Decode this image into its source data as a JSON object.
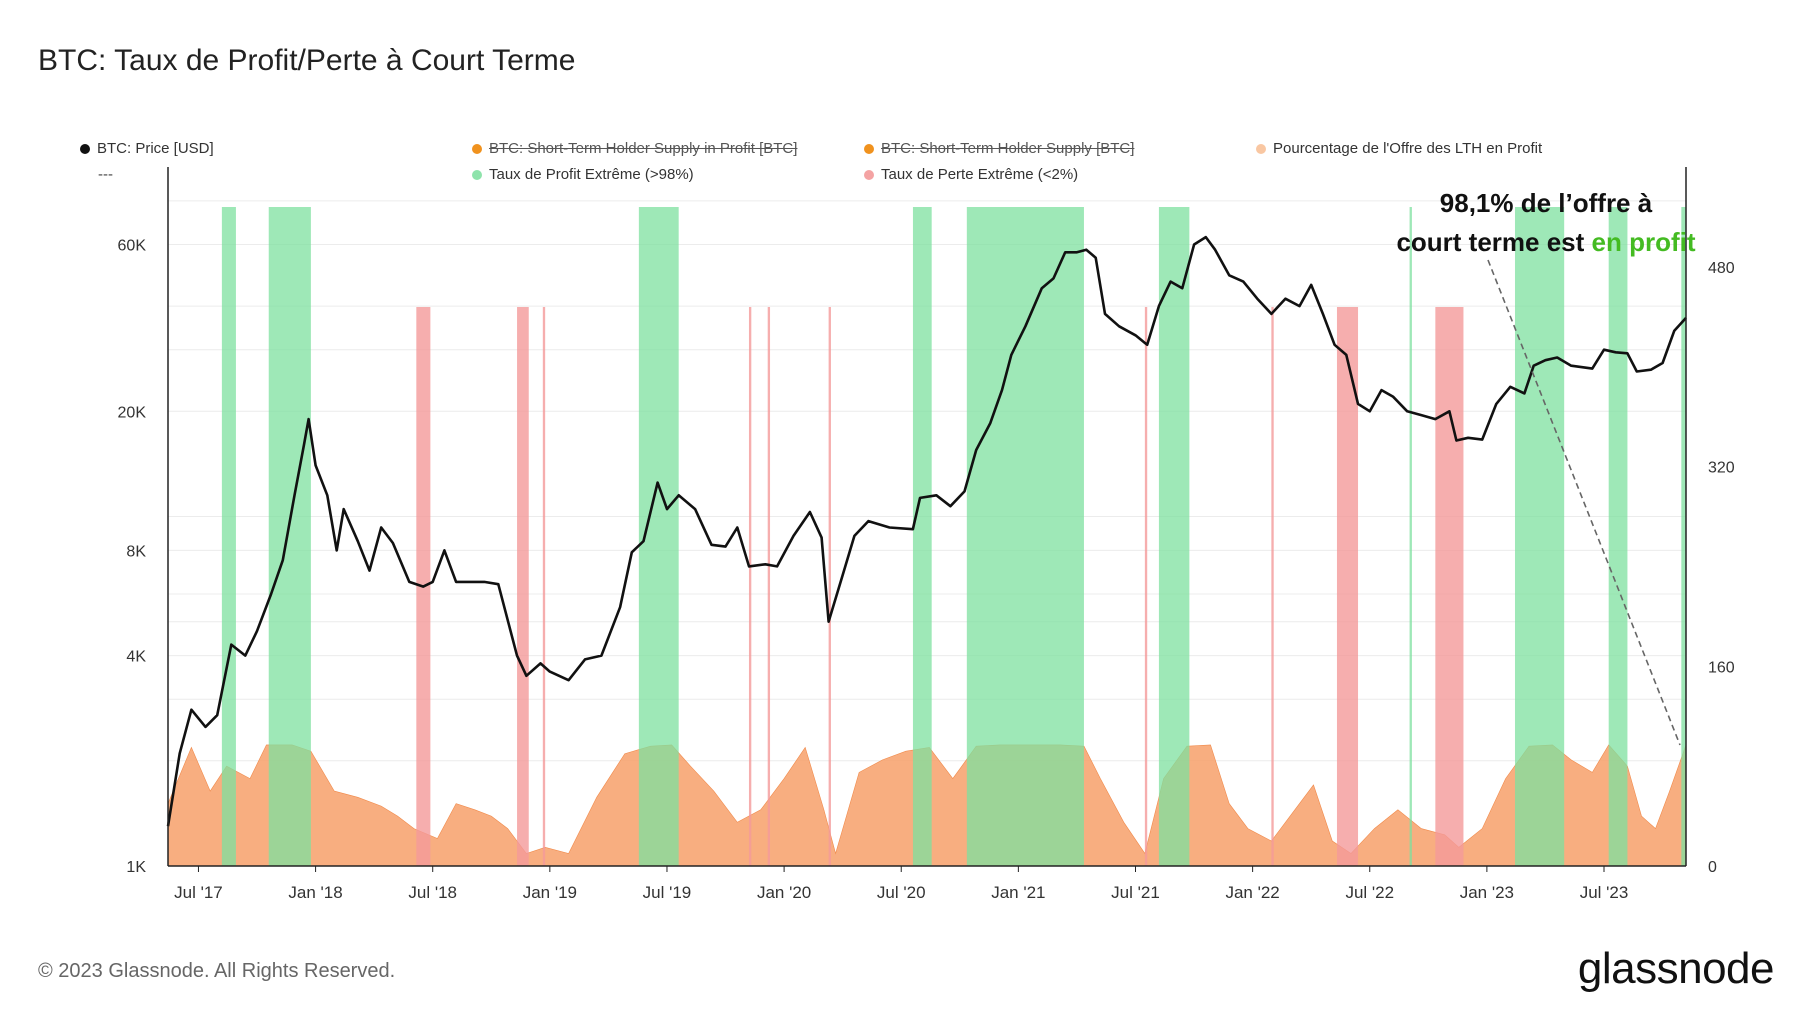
{
  "page": {
    "title": "BTC: Taux de Profit/Perte à Court Terme"
  },
  "legend": {
    "items": [
      {
        "label": "BTC: Price [USD]",
        "color": "#111111",
        "struck": false
      },
      {
        "label": "BTC: Short-Term Holder Supply in Profit [BTC]",
        "color": "#f0921e",
        "struck": true
      },
      {
        "label": "BTC: Short-Term Holder Supply [BTC]",
        "color": "#f0921e",
        "struck": true
      },
      {
        "label": "Pourcentage de l'Offre des LTH en Profit",
        "color": "#f9c7a2",
        "struck": false
      },
      {
        "label": "Taux de Profit Extrême (>98%)",
        "color": "#8ee3ab",
        "struck": false
      },
      {
        "label": "Taux de Perte Extrême (<2%)",
        "color": "#f4a3a3",
        "struck": false
      }
    ],
    "dashes": "---"
  },
  "annotation": {
    "line1": "98,1% de l’offre à",
    "line2_prefix": "court terme est ",
    "line2_highlight": "en profit",
    "highlight_color": "#44bb22"
  },
  "footer": {
    "copyright": "© 2023 Glassnode. All Rights Reserved.",
    "brand": "glassnode"
  },
  "chart_data": {
    "type": "line",
    "title": "BTC: Taux de Profit/Perte à Court Terme",
    "x_ticks": [
      "Jul '17",
      "Jan '18",
      "Jul '18",
      "Jan '19",
      "Jul '19",
      "Jan '20",
      "Jul '20",
      "Jan '21",
      "Jul '21",
      "Jan '22",
      "Jul '22",
      "Jan '23",
      "Jul '23"
    ],
    "left_axis": {
      "scale": "log",
      "ticks": [
        "1K",
        "4K",
        "8K",
        "20K",
        "60K"
      ],
      "tick_values": [
        1000,
        4000,
        8000,
        20000,
        60000
      ],
      "range": [
        1000,
        100000
      ]
    },
    "right_axis": {
      "scale": "linear",
      "ticks": [
        "0",
        "160",
        "320",
        "480"
      ],
      "tick_values": [
        0,
        160,
        320,
        480
      ],
      "range": [
        0,
        560
      ]
    },
    "x_range": [
      2017.37,
      2023.85
    ],
    "price_series": {
      "name": "BTC: Price [USD]",
      "color": "#111111",
      "points": [
        [
          2017.37,
          1300
        ],
        [
          2017.42,
          2100
        ],
        [
          2017.47,
          2800
        ],
        [
          2017.53,
          2500
        ],
        [
          2017.58,
          2700
        ],
        [
          2017.64,
          4300
        ],
        [
          2017.7,
          4000
        ],
        [
          2017.75,
          4700
        ],
        [
          2017.81,
          6000
        ],
        [
          2017.86,
          7500
        ],
        [
          2017.91,
          11500
        ],
        [
          2017.95,
          16000
        ],
        [
          2017.97,
          19000
        ],
        [
          2018.0,
          14000
        ],
        [
          2018.05,
          11500
        ],
        [
          2018.09,
          8000
        ],
        [
          2018.12,
          10500
        ],
        [
          2018.18,
          8500
        ],
        [
          2018.23,
          7000
        ],
        [
          2018.28,
          9300
        ],
        [
          2018.33,
          8400
        ],
        [
          2018.4,
          6500
        ],
        [
          2018.46,
          6300
        ],
        [
          2018.5,
          6500
        ],
        [
          2018.55,
          8000
        ],
        [
          2018.6,
          6500
        ],
        [
          2018.65,
          6500
        ],
        [
          2018.72,
          6500
        ],
        [
          2018.78,
          6400
        ],
        [
          2018.86,
          4000
        ],
        [
          2018.9,
          3500
        ],
        [
          2018.96,
          3800
        ],
        [
          2019.0,
          3600
        ],
        [
          2019.08,
          3400
        ],
        [
          2019.15,
          3900
        ],
        [
          2019.22,
          4000
        ],
        [
          2019.3,
          5500
        ],
        [
          2019.35,
          7900
        ],
        [
          2019.4,
          8500
        ],
        [
          2019.46,
          12500
        ],
        [
          2019.5,
          10500
        ],
        [
          2019.55,
          11500
        ],
        [
          2019.62,
          10500
        ],
        [
          2019.69,
          8300
        ],
        [
          2019.75,
          8200
        ],
        [
          2019.8,
          9300
        ],
        [
          2019.85,
          7200
        ],
        [
          2019.92,
          7300
        ],
        [
          2019.97,
          7200
        ],
        [
          2020.04,
          8800
        ],
        [
          2020.11,
          10300
        ],
        [
          2020.16,
          8700
        ],
        [
          2020.19,
          5000
        ],
        [
          2020.25,
          6800
        ],
        [
          2020.3,
          8800
        ],
        [
          2020.36,
          9700
        ],
        [
          2020.45,
          9300
        ],
        [
          2020.55,
          9200
        ],
        [
          2020.58,
          11300
        ],
        [
          2020.65,
          11500
        ],
        [
          2020.71,
          10700
        ],
        [
          2020.77,
          11800
        ],
        [
          2020.82,
          15500
        ],
        [
          2020.88,
          18500
        ],
        [
          2020.93,
          23000
        ],
        [
          2020.97,
          29000
        ],
        [
          2021.03,
          35000
        ],
        [
          2021.1,
          45000
        ],
        [
          2021.15,
          48000
        ],
        [
          2021.2,
          57000
        ],
        [
          2021.25,
          57000
        ],
        [
          2021.29,
          58000
        ],
        [
          2021.33,
          55000
        ],
        [
          2021.37,
          38000
        ],
        [
          2021.43,
          35000
        ],
        [
          2021.5,
          33000
        ],
        [
          2021.55,
          31000
        ],
        [
          2021.6,
          40000
        ],
        [
          2021.65,
          47000
        ],
        [
          2021.7,
          45000
        ],
        [
          2021.75,
          60000
        ],
        [
          2021.8,
          63000
        ],
        [
          2021.84,
          58000
        ],
        [
          2021.9,
          49000
        ],
        [
          2021.96,
          47000
        ],
        [
          2022.02,
          42000
        ],
        [
          2022.08,
          38000
        ],
        [
          2022.14,
          42000
        ],
        [
          2022.2,
          40000
        ],
        [
          2022.25,
          46000
        ],
        [
          2022.3,
          38000
        ],
        [
          2022.35,
          31000
        ],
        [
          2022.4,
          29000
        ],
        [
          2022.45,
          21000
        ],
        [
          2022.5,
          20000
        ],
        [
          2022.55,
          23000
        ],
        [
          2022.6,
          22000
        ],
        [
          2022.66,
          20000
        ],
        [
          2022.72,
          19500
        ],
        [
          2022.78,
          19000
        ],
        [
          2022.84,
          20000
        ],
        [
          2022.87,
          16500
        ],
        [
          2022.92,
          16800
        ],
        [
          2022.98,
          16600
        ],
        [
          2023.04,
          21000
        ],
        [
          2023.1,
          23500
        ],
        [
          2023.16,
          22500
        ],
        [
          2023.2,
          27000
        ],
        [
          2023.25,
          28000
        ],
        [
          2023.3,
          28500
        ],
        [
          2023.36,
          27000
        ],
        [
          2023.45,
          26500
        ],
        [
          2023.5,
          30000
        ],
        [
          2023.55,
          29500
        ],
        [
          2023.6,
          29300
        ],
        [
          2023.64,
          26000
        ],
        [
          2023.7,
          26300
        ],
        [
          2023.75,
          27500
        ],
        [
          2023.8,
          34000
        ],
        [
          2023.85,
          37000
        ]
      ]
    },
    "lth_profit_series": {
      "name": "Pourcentage de l'Offre des LTH en Profit",
      "color": "#f7a06a",
      "points": [
        [
          2017.37,
          50
        ],
        [
          2017.47,
          95
        ],
        [
          2017.55,
          60
        ],
        [
          2017.62,
          80
        ],
        [
          2017.72,
          70
        ],
        [
          2017.79,
          97
        ],
        [
          2017.9,
          97
        ],
        [
          2017.98,
          92
        ],
        [
          2018.08,
          60
        ],
        [
          2018.18,
          55
        ],
        [
          2018.28,
          48
        ],
        [
          2018.35,
          40
        ],
        [
          2018.42,
          30
        ],
        [
          2018.52,
          22
        ],
        [
          2018.6,
          50
        ],
        [
          2018.68,
          45
        ],
        [
          2018.75,
          40
        ],
        [
          2018.82,
          30
        ],
        [
          2018.9,
          10
        ],
        [
          2018.98,
          15
        ],
        [
          2019.08,
          10
        ],
        [
          2019.2,
          55
        ],
        [
          2019.32,
          90
        ],
        [
          2019.43,
          96
        ],
        [
          2019.52,
          97
        ],
        [
          2019.6,
          80
        ],
        [
          2019.7,
          60
        ],
        [
          2019.8,
          35
        ],
        [
          2019.9,
          45
        ],
        [
          2020.0,
          70
        ],
        [
          2020.09,
          95
        ],
        [
          2020.17,
          45
        ],
        [
          2020.22,
          10
        ],
        [
          2020.32,
          75
        ],
        [
          2020.42,
          85
        ],
        [
          2020.52,
          92
        ],
        [
          2020.62,
          95
        ],
        [
          2020.72,
          70
        ],
        [
          2020.82,
          96
        ],
        [
          2020.92,
          97
        ],
        [
          2021.05,
          97
        ],
        [
          2021.18,
          97
        ],
        [
          2021.28,
          96
        ],
        [
          2021.35,
          70
        ],
        [
          2021.45,
          35
        ],
        [
          2021.54,
          10
        ],
        [
          2021.62,
          70
        ],
        [
          2021.72,
          96
        ],
        [
          2021.82,
          97
        ],
        [
          2021.9,
          50
        ],
        [
          2021.98,
          30
        ],
        [
          2022.08,
          20
        ],
        [
          2022.18,
          45
        ],
        [
          2022.26,
          65
        ],
        [
          2022.34,
          20
        ],
        [
          2022.42,
          10
        ],
        [
          2022.52,
          30
        ],
        [
          2022.62,
          45
        ],
        [
          2022.72,
          30
        ],
        [
          2022.82,
          25
        ],
        [
          2022.88,
          15
        ],
        [
          2022.98,
          30
        ],
        [
          2023.08,
          70
        ],
        [
          2023.18,
          96
        ],
        [
          2023.28,
          97
        ],
        [
          2023.36,
          85
        ],
        [
          2023.45,
          75
        ],
        [
          2023.52,
          97
        ],
        [
          2023.6,
          80
        ],
        [
          2023.66,
          40
        ],
        [
          2023.72,
          30
        ],
        [
          2023.78,
          60
        ],
        [
          2023.85,
          97
        ]
      ]
    },
    "extreme_profit_bands": {
      "name": "Taux de Profit Extrême (>98%)",
      "color": "#7ee09f",
      "ranges": [
        [
          2017.6,
          2017.66
        ],
        [
          2017.8,
          2017.98
        ],
        [
          2019.38,
          2019.55
        ],
        [
          2020.55,
          2020.63
        ],
        [
          2020.78,
          2021.28
        ],
        [
          2021.6,
          2021.73
        ],
        [
          2022.67,
          2022.68
        ],
        [
          2023.12,
          2023.33
        ],
        [
          2023.52,
          2023.6
        ],
        [
          2023.83,
          2023.85
        ]
      ]
    },
    "extreme_loss_bands": {
      "name": "Taux de Perte Extrême (<2%)",
      "color": "#f49a9a",
      "ranges": [
        [
          2018.43,
          2018.49
        ],
        [
          2018.86,
          2018.91
        ],
        [
          2018.97,
          2018.98
        ],
        [
          2019.85,
          2019.86
        ],
        [
          2019.93,
          2019.94
        ],
        [
          2020.19,
          2020.2
        ],
        [
          2021.54,
          2021.55
        ],
        [
          2022.08,
          2022.09
        ],
        [
          2022.36,
          2022.45
        ],
        [
          2022.78,
          2022.9
        ]
      ]
    }
  }
}
